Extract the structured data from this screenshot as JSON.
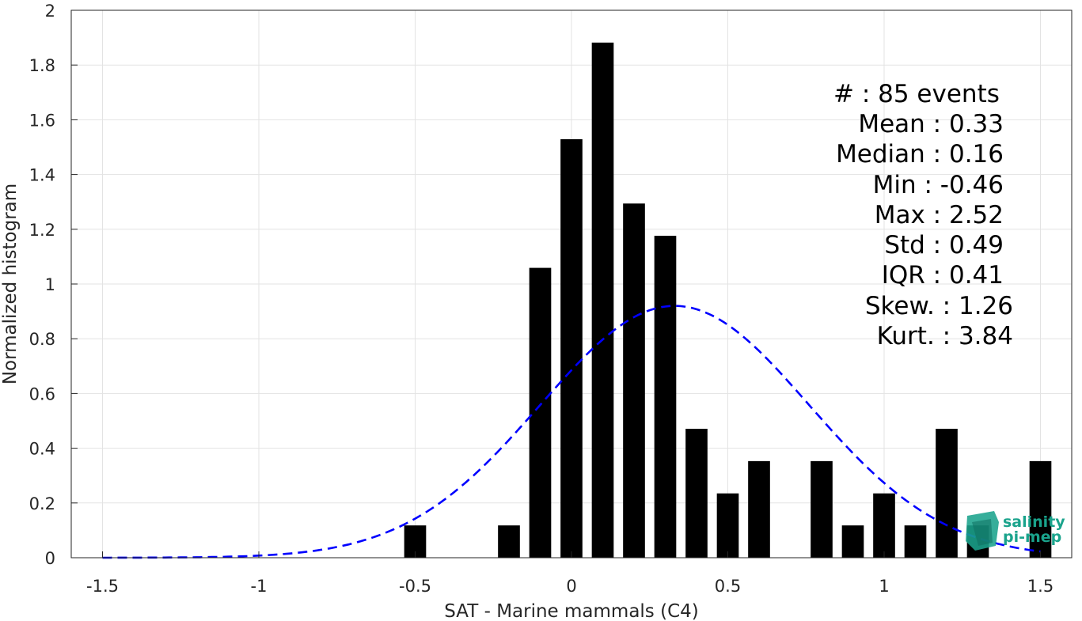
{
  "chart_data": {
    "type": "bar",
    "title": "",
    "xlabel": "SAT - Marine mammals (C4)",
    "ylabel": "Normalized histogram",
    "xlim": [
      -1.6,
      1.6
    ],
    "ylim": [
      0,
      2
    ],
    "grid": true,
    "x_ticks": [
      {
        "value": -1.5,
        "label": "-1.5"
      },
      {
        "value": -1,
        "label": "-1"
      },
      {
        "value": -0.5,
        "label": "-0.5"
      },
      {
        "value": 0,
        "label": "0"
      },
      {
        "value": 0.5,
        "label": "0.5"
      },
      {
        "value": 1,
        "label": "1"
      },
      {
        "value": 1.5,
        "label": "1.5"
      }
    ],
    "y_ticks": [
      {
        "value": 0,
        "label": "0"
      },
      {
        "value": 0.2,
        "label": "0.2"
      },
      {
        "value": 0.4,
        "label": "0.4"
      },
      {
        "value": 0.6,
        "label": "0.6"
      },
      {
        "value": 0.8,
        "label": "0.8"
      },
      {
        "value": 1,
        "label": "1"
      },
      {
        "value": 1.2,
        "label": "1.2"
      },
      {
        "value": 1.4,
        "label": "1.4"
      },
      {
        "value": 1.6,
        "label": "1.6"
      },
      {
        "value": 1.8,
        "label": "1.8"
      },
      {
        "value": 2,
        "label": "2"
      }
    ],
    "bar_width": 0.07,
    "bars": [
      {
        "x": -0.5,
        "value": 0.118
      },
      {
        "x": -0.2,
        "value": 0.118
      },
      {
        "x": -0.1,
        "value": 1.059
      },
      {
        "x": 0.0,
        "value": 1.529
      },
      {
        "x": 0.1,
        "value": 1.882
      },
      {
        "x": 0.2,
        "value": 1.294
      },
      {
        "x": 0.3,
        "value": 1.176
      },
      {
        "x": 0.4,
        "value": 0.471
      },
      {
        "x": 0.5,
        "value": 0.235
      },
      {
        "x": 0.6,
        "value": 0.353
      },
      {
        "x": 0.8,
        "value": 0.353
      },
      {
        "x": 0.9,
        "value": 0.118
      },
      {
        "x": 1.0,
        "value": 0.235
      },
      {
        "x": 1.1,
        "value": 0.118
      },
      {
        "x": 1.2,
        "value": 0.471
      },
      {
        "x": 1.3,
        "value": 0.118
      },
      {
        "x": 1.5,
        "value": 0.353
      }
    ],
    "fit_curve": {
      "style": "dashed",
      "distribution": "normal",
      "mean": 0.33,
      "std": 0.43,
      "x_range": [
        -1.5,
        1.5
      ],
      "peak": 0.92
    },
    "bar_color": "#000000",
    "curve_color": "#0000ff",
    "stats_lines": [
      "#  : 85 events",
      "Mean : 0.33",
      "Median : 0.16",
      "Min : -0.46",
      "Max : 2.52",
      "Std : 0.49",
      "IQR : 0.41",
      "Skew. : 1.26",
      "Kurt. : 3.84"
    ]
  },
  "logo": {
    "line1": "salinity",
    "line2": "pi-mep",
    "color": "#1aa38c"
  }
}
